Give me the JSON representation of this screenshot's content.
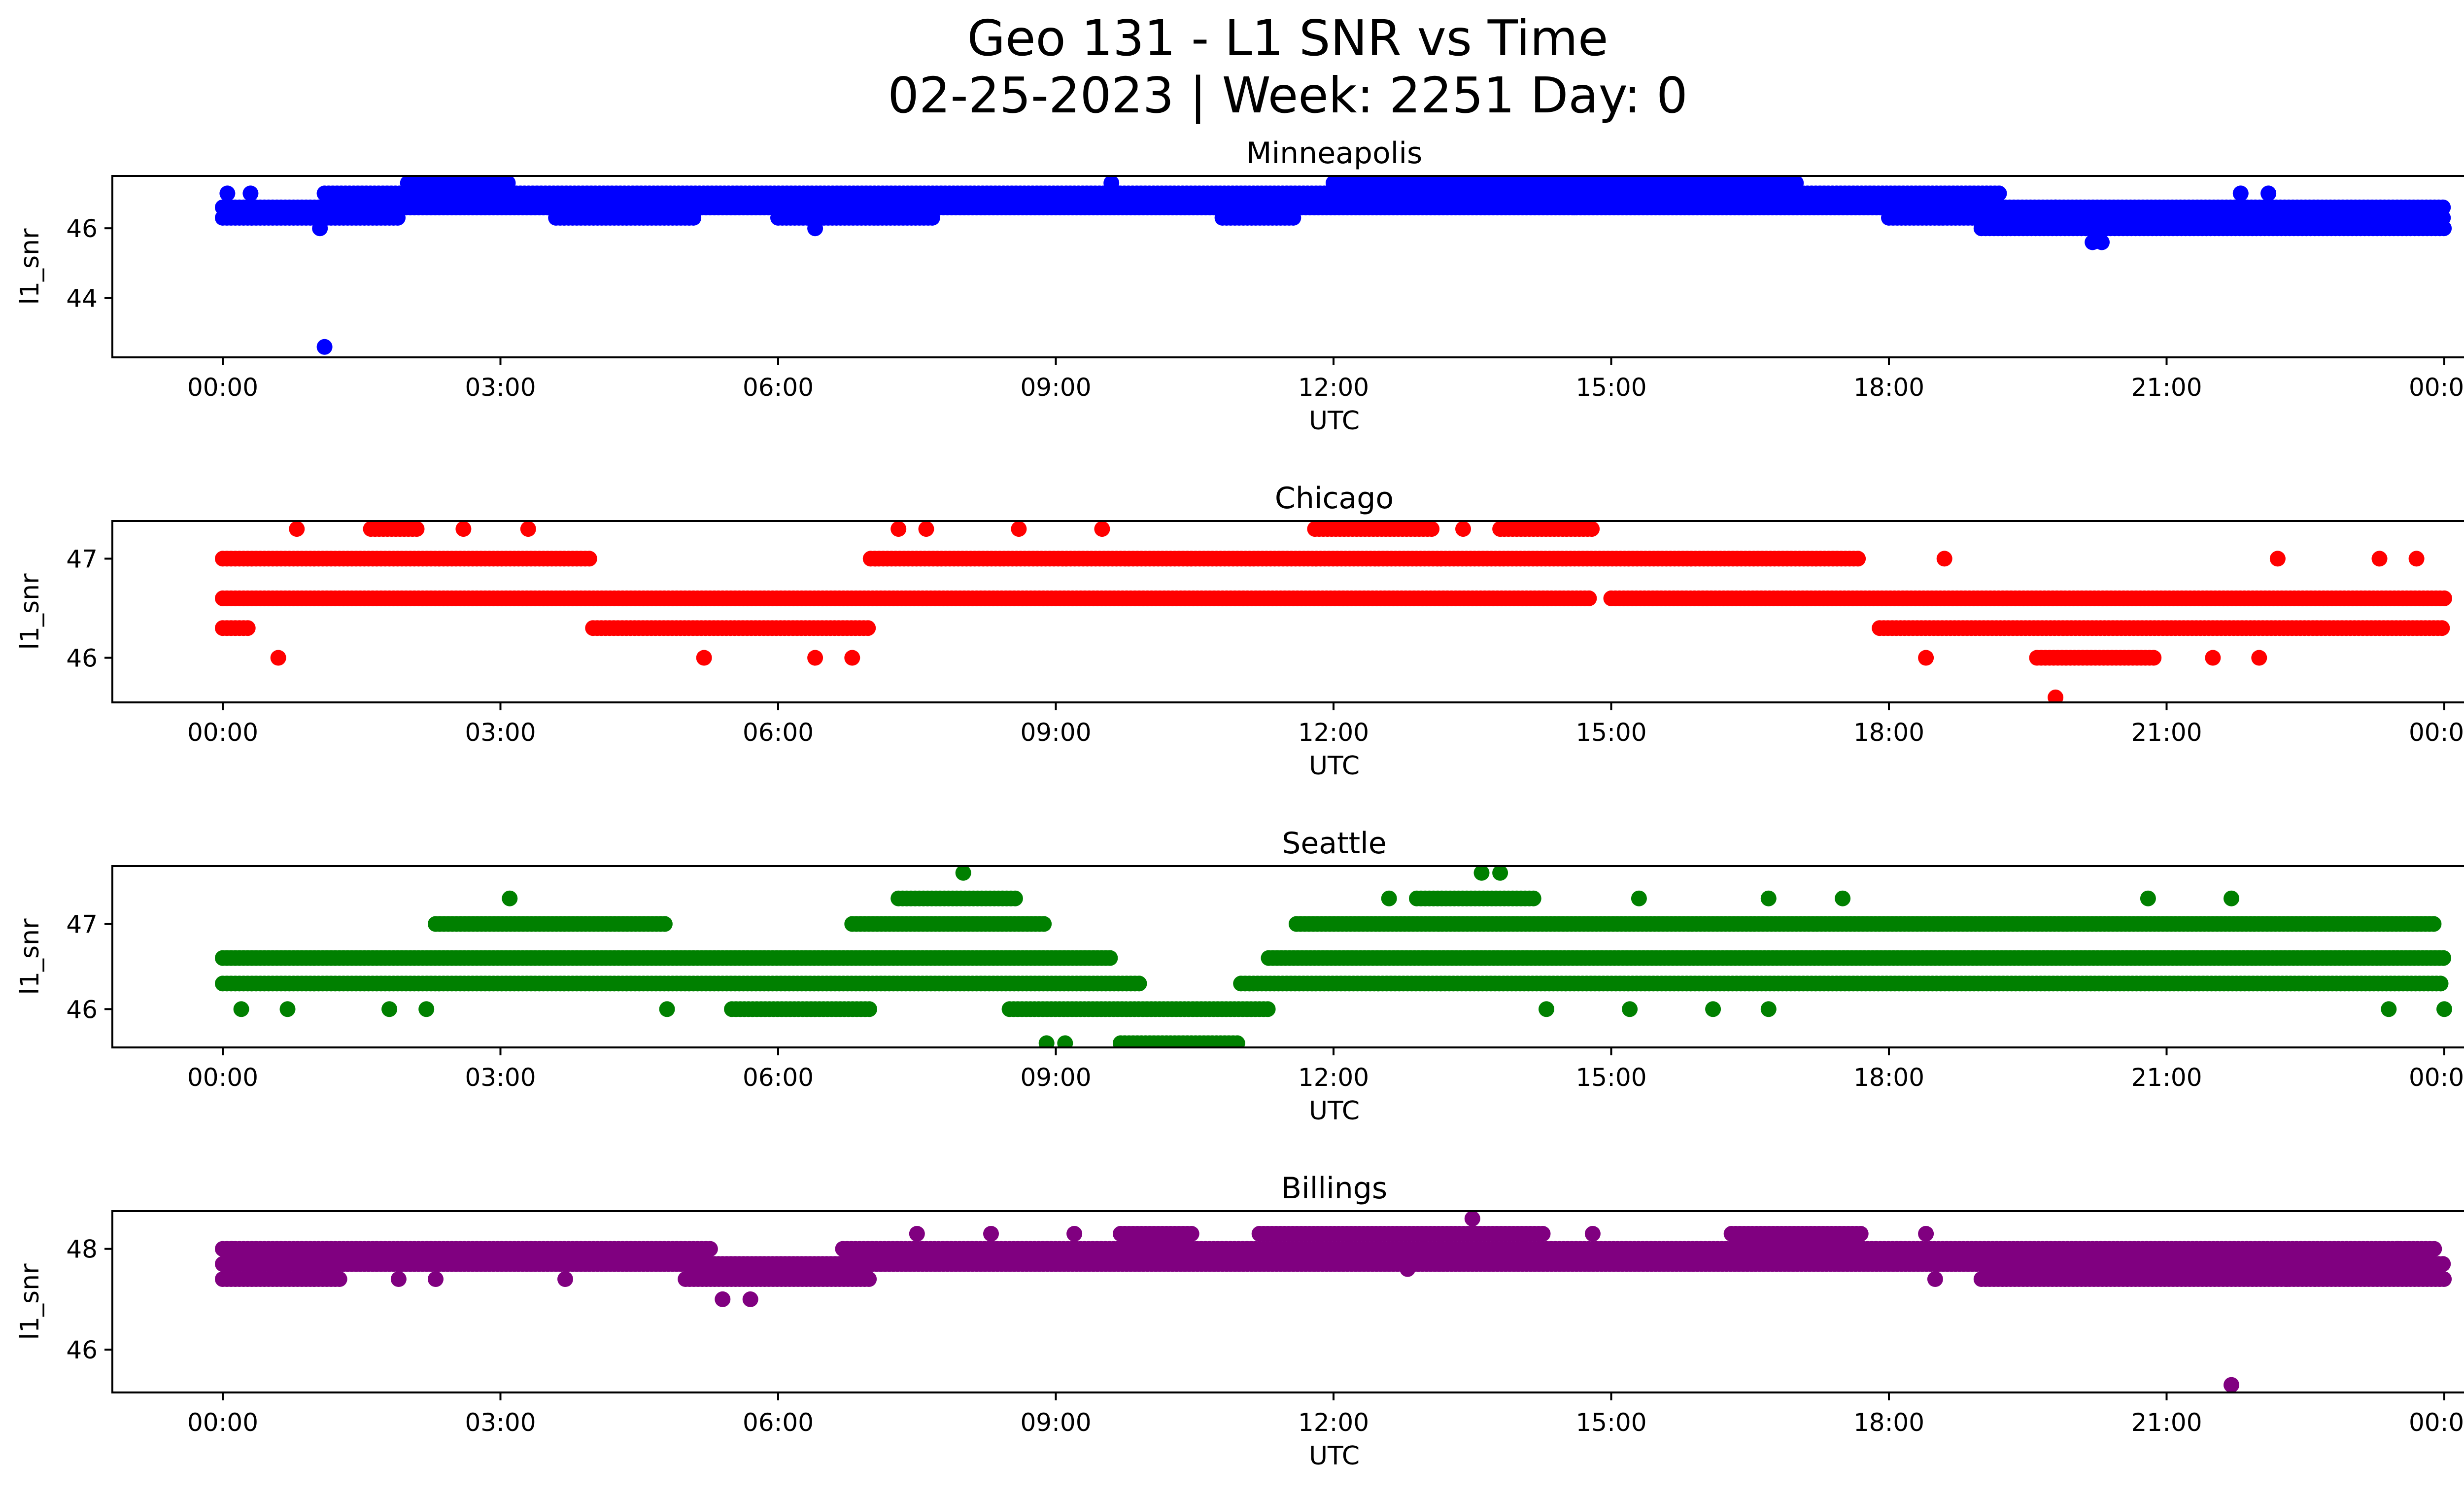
{
  "figure": {
    "title_line1": "Geo 131 - L1 SNR vs Time",
    "title_line2": "02-25-2023 | Week: 2251 Day: 0"
  },
  "chart_data": [
    {
      "type": "scatter",
      "title": "Minneapolis",
      "xlabel": "UTC",
      "ylabel": "l1_snr",
      "color": "#0000ff",
      "xlim": [
        "00:00",
        "24:00"
      ],
      "ylim": [
        42.3,
        47.5
      ],
      "xticks": [
        "00:00",
        "03:00",
        "06:00",
        "09:00",
        "12:00",
        "15:00",
        "18:00",
        "21:00",
        "00:00"
      ],
      "yticks": [
        44,
        46
      ],
      "series": [
        {
          "segments": [
            {
              "y": 46.3,
              "x_start": 0.0,
              "x_end": 1.9
            },
            {
              "y": 46.6,
              "x_start": 0.0,
              "x_end": 24.0
            },
            {
              "y": 47.0,
              "x_start": 1.1,
              "x_end": 19.2
            },
            {
              "y": 47.3,
              "x_start": 2.0,
              "x_end": 3.1
            },
            {
              "y": 47.3,
              "x_start": 12.0,
              "x_end": 17.0
            },
            {
              "y": 46.3,
              "x_start": 3.6,
              "x_end": 5.1
            },
            {
              "y": 46.3,
              "x_start": 6.0,
              "x_end": 7.7
            },
            {
              "y": 46.3,
              "x_start": 10.8,
              "x_end": 11.6
            },
            {
              "y": 46.3,
              "x_start": 18.0,
              "x_end": 24.0
            },
            {
              "y": 46.0,
              "x_start": 19.0,
              "x_end": 24.0
            }
          ],
          "points": [
            {
              "x": 0.05,
              "y": 47.0
            },
            {
              "x": 0.3,
              "y": 47.0
            },
            {
              "x": 1.05,
              "y": 46.0
            },
            {
              "x": 1.1,
              "y": 42.6
            },
            {
              "x": 6.4,
              "y": 46.0
            },
            {
              "x": 9.6,
              "y": 47.3
            },
            {
              "x": 14.6,
              "y": 46.6
            },
            {
              "x": 19.8,
              "y": 46.6
            },
            {
              "x": 20.2,
              "y": 45.6
            },
            {
              "x": 20.3,
              "y": 45.6
            },
            {
              "x": 21.8,
              "y": 47.0
            },
            {
              "x": 22.1,
              "y": 47.0
            }
          ]
        }
      ]
    },
    {
      "type": "scatter",
      "title": "Chicago",
      "xlabel": "UTC",
      "ylabel": "l1_snr",
      "color": "#ff0000",
      "xlim": [
        "00:00",
        "24:00"
      ],
      "ylim": [
        45.55,
        47.38
      ],
      "xticks": [
        "00:00",
        "03:00",
        "06:00",
        "09:00",
        "12:00",
        "15:00",
        "18:00",
        "21:00",
        "00:00"
      ],
      "yticks": [
        46,
        47
      ],
      "series": [
        {
          "segments": [
            {
              "y": 47.0,
              "x_start": 0.0,
              "x_end": 4.0
            },
            {
              "y": 47.0,
              "x_start": 7.0,
              "x_end": 17.7
            },
            {
              "y": 46.6,
              "x_start": 0.0,
              "x_end": 14.8
            },
            {
              "y": 46.6,
              "x_start": 15.0,
              "x_end": 24.0
            },
            {
              "y": 46.3,
              "x_start": 0.0,
              "x_end": 0.3
            },
            {
              "y": 46.3,
              "x_start": 4.0,
              "x_end": 7.0
            },
            {
              "y": 46.3,
              "x_start": 17.9,
              "x_end": 24.0
            },
            {
              "y": 47.3,
              "x_start": 1.6,
              "x_end": 2.1
            },
            {
              "y": 47.3,
              "x_start": 11.8,
              "x_end": 13.1
            },
            {
              "y": 47.3,
              "x_start": 13.8,
              "x_end": 14.8
            },
            {
              "y": 46.0,
              "x_start": 19.6,
              "x_end": 20.9
            }
          ],
          "points": [
            {
              "x": 0.6,
              "y": 46.0
            },
            {
              "x": 0.8,
              "y": 47.3
            },
            {
              "x": 2.6,
              "y": 47.3
            },
            {
              "x": 3.3,
              "y": 47.3
            },
            {
              "x": 5.2,
              "y": 46.0
            },
            {
              "x": 6.4,
              "y": 46.0
            },
            {
              "x": 6.8,
              "y": 46.0
            },
            {
              "x": 7.3,
              "y": 47.3
            },
            {
              "x": 7.6,
              "y": 47.3
            },
            {
              "x": 8.6,
              "y": 47.3
            },
            {
              "x": 9.5,
              "y": 47.3
            },
            {
              "x": 13.4,
              "y": 47.3
            },
            {
              "x": 18.4,
              "y": 46.0
            },
            {
              "x": 18.6,
              "y": 47.0
            },
            {
              "x": 19.8,
              "y": 45.6
            },
            {
              "x": 22.2,
              "y": 47.0
            },
            {
              "x": 23.3,
              "y": 47.0
            },
            {
              "x": 23.7,
              "y": 47.0
            },
            {
              "x": 21.5,
              "y": 46.0
            },
            {
              "x": 22.0,
              "y": 46.0
            }
          ]
        }
      ]
    },
    {
      "type": "scatter",
      "title": "Seattle",
      "xlabel": "UTC",
      "ylabel": "l1_snr",
      "color": "#008000",
      "xlim": [
        "00:00",
        "24:00"
      ],
      "ylim": [
        45.55,
        47.68
      ],
      "xticks": [
        "00:00",
        "03:00",
        "06:00",
        "09:00",
        "12:00",
        "15:00",
        "18:00",
        "21:00",
        "00:00"
      ],
      "yticks": [
        46,
        47
      ],
      "series": [
        {
          "segments": [
            {
              "y": 46.6,
              "x_start": 0.0,
              "x_end": 9.6
            },
            {
              "y": 46.6,
              "x_start": 11.3,
              "x_end": 24.0
            },
            {
              "y": 46.3,
              "x_start": 0.0,
              "x_end": 9.9
            },
            {
              "y": 46.3,
              "x_start": 11.0,
              "x_end": 24.0
            },
            {
              "y": 47.0,
              "x_start": 2.3,
              "x_end": 4.8
            },
            {
              "y": 47.0,
              "x_start": 6.8,
              "x_end": 8.9
            },
            {
              "y": 47.0,
              "x_start": 11.6,
              "x_end": 23.9
            },
            {
              "y": 46.0,
              "x_start": 8.5,
              "x_end": 11.3
            },
            {
              "y": 45.6,
              "x_start": 9.7,
              "x_end": 11.0
            },
            {
              "y": 47.3,
              "x_start": 7.3,
              "x_end": 8.6
            },
            {
              "y": 47.3,
              "x_start": 12.9,
              "x_end": 14.2
            },
            {
              "y": 46.0,
              "x_start": 5.5,
              "x_end": 7.0
            }
          ],
          "points": [
            {
              "x": 0.2,
              "y": 46.0
            },
            {
              "x": 0.7,
              "y": 46.0
            },
            {
              "x": 1.8,
              "y": 46.0
            },
            {
              "x": 2.2,
              "y": 46.0
            },
            {
              "x": 3.1,
              "y": 47.3
            },
            {
              "x": 4.8,
              "y": 46.0
            },
            {
              "x": 8.0,
              "y": 47.6
            },
            {
              "x": 8.9,
              "y": 45.6
            },
            {
              "x": 9.1,
              "y": 45.6
            },
            {
              "x": 13.6,
              "y": 47.6
            },
            {
              "x": 13.8,
              "y": 47.6
            },
            {
              "x": 12.6,
              "y": 47.3
            },
            {
              "x": 15.3,
              "y": 47.3
            },
            {
              "x": 16.7,
              "y": 47.3
            },
            {
              "x": 17.5,
              "y": 47.3
            },
            {
              "x": 20.8,
              "y": 47.3
            },
            {
              "x": 21.7,
              "y": 47.3
            },
            {
              "x": 14.3,
              "y": 46.0
            },
            {
              "x": 15.2,
              "y": 46.0
            },
            {
              "x": 16.1,
              "y": 46.0
            },
            {
              "x": 16.7,
              "y": 46.0
            },
            {
              "x": 23.4,
              "y": 46.0
            },
            {
              "x": 24.0,
              "y": 46.0
            }
          ]
        }
      ]
    },
    {
      "type": "scatter",
      "title": "Billings",
      "xlabel": "UTC",
      "ylabel": "l1_snr",
      "color": "#800080",
      "xlim": [
        "00:00",
        "24:00"
      ],
      "ylim": [
        45.15,
        48.75
      ],
      "xticks": [
        "00:00",
        "03:00",
        "06:00",
        "09:00",
        "12:00",
        "15:00",
        "18:00",
        "21:00",
        "00:00"
      ],
      "yticks": [
        46,
        48
      ],
      "series": [
        {
          "segments": [
            {
              "y": 48.0,
              "x_start": 0.0,
              "x_end": 5.3
            },
            {
              "y": 48.0,
              "x_start": 6.7,
              "x_end": 23.9
            },
            {
              "y": 47.7,
              "x_start": 0.0,
              "x_end": 24.0
            },
            {
              "y": 47.4,
              "x_start": 0.0,
              "x_end": 1.3
            },
            {
              "y": 47.4,
              "x_start": 5.0,
              "x_end": 7.0
            },
            {
              "y": 47.4,
              "x_start": 19.0,
              "x_end": 24.0
            },
            {
              "y": 48.3,
              "x_start": 11.2,
              "x_end": 14.3
            },
            {
              "y": 48.3,
              "x_start": 16.3,
              "x_end": 17.7
            },
            {
              "y": 48.3,
              "x_start": 9.7,
              "x_end": 10.5
            }
          ],
          "points": [
            {
              "x": 0.1,
              "y": 48.0
            },
            {
              "x": 1.9,
              "y": 47.4
            },
            {
              "x": 2.3,
              "y": 47.4
            },
            {
              "x": 3.7,
              "y": 47.4
            },
            {
              "x": 5.4,
              "y": 47.0
            },
            {
              "x": 5.7,
              "y": 47.0
            },
            {
              "x": 7.5,
              "y": 48.3
            },
            {
              "x": 8.3,
              "y": 48.3
            },
            {
              "x": 9.2,
              "y": 48.3
            },
            {
              "x": 12.8,
              "y": 47.6
            },
            {
              "x": 13.5,
              "y": 48.6
            },
            {
              "x": 14.8,
              "y": 48.3
            },
            {
              "x": 18.4,
              "y": 48.3
            },
            {
              "x": 18.5,
              "y": 47.4
            },
            {
              "x": 21.7,
              "y": 45.3
            },
            {
              "x": 22.3,
              "y": 47.4
            },
            {
              "x": 23.5,
              "y": 48.0
            }
          ]
        }
      ]
    }
  ]
}
